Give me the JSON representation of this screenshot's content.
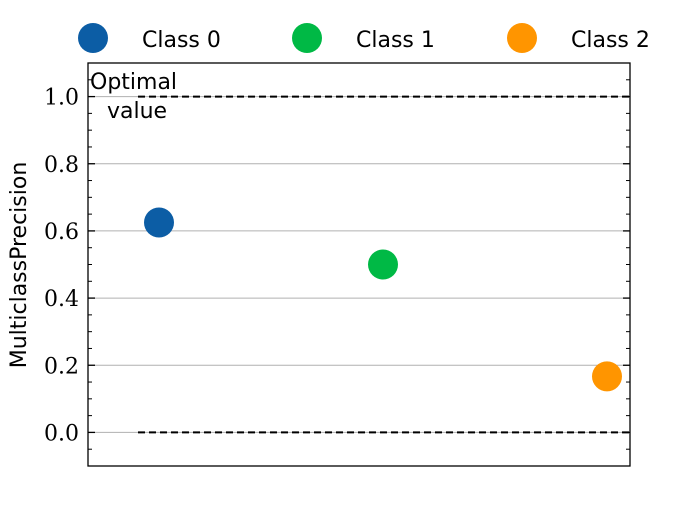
{
  "chart_data": {
    "type": "scatter",
    "ylabel": "MulticlassPrecision",
    "xlabel": "",
    "ylim": [
      -0.1,
      1.1
    ],
    "yticks": [
      "0.0",
      "0.2",
      "0.4",
      "0.6",
      "0.8",
      "1.0"
    ],
    "grid": "horizontal",
    "legend_position": "top",
    "series": [
      {
        "name": "Class 0",
        "x": 0,
        "y": 0.625,
        "color": "#0c5da5"
      },
      {
        "name": "Class 1",
        "x": 1,
        "y": 0.5,
        "color": "#00b945"
      },
      {
        "name": "Class 2",
        "x": 2,
        "y": 0.167,
        "color": "#ff9500"
      }
    ],
    "reference_lines": [
      {
        "y": 1.0,
        "style": "dashed"
      },
      {
        "y": 0.0,
        "style": "dashed"
      }
    ],
    "annotation": {
      "line1": "Optimal",
      "line2": "value"
    }
  }
}
